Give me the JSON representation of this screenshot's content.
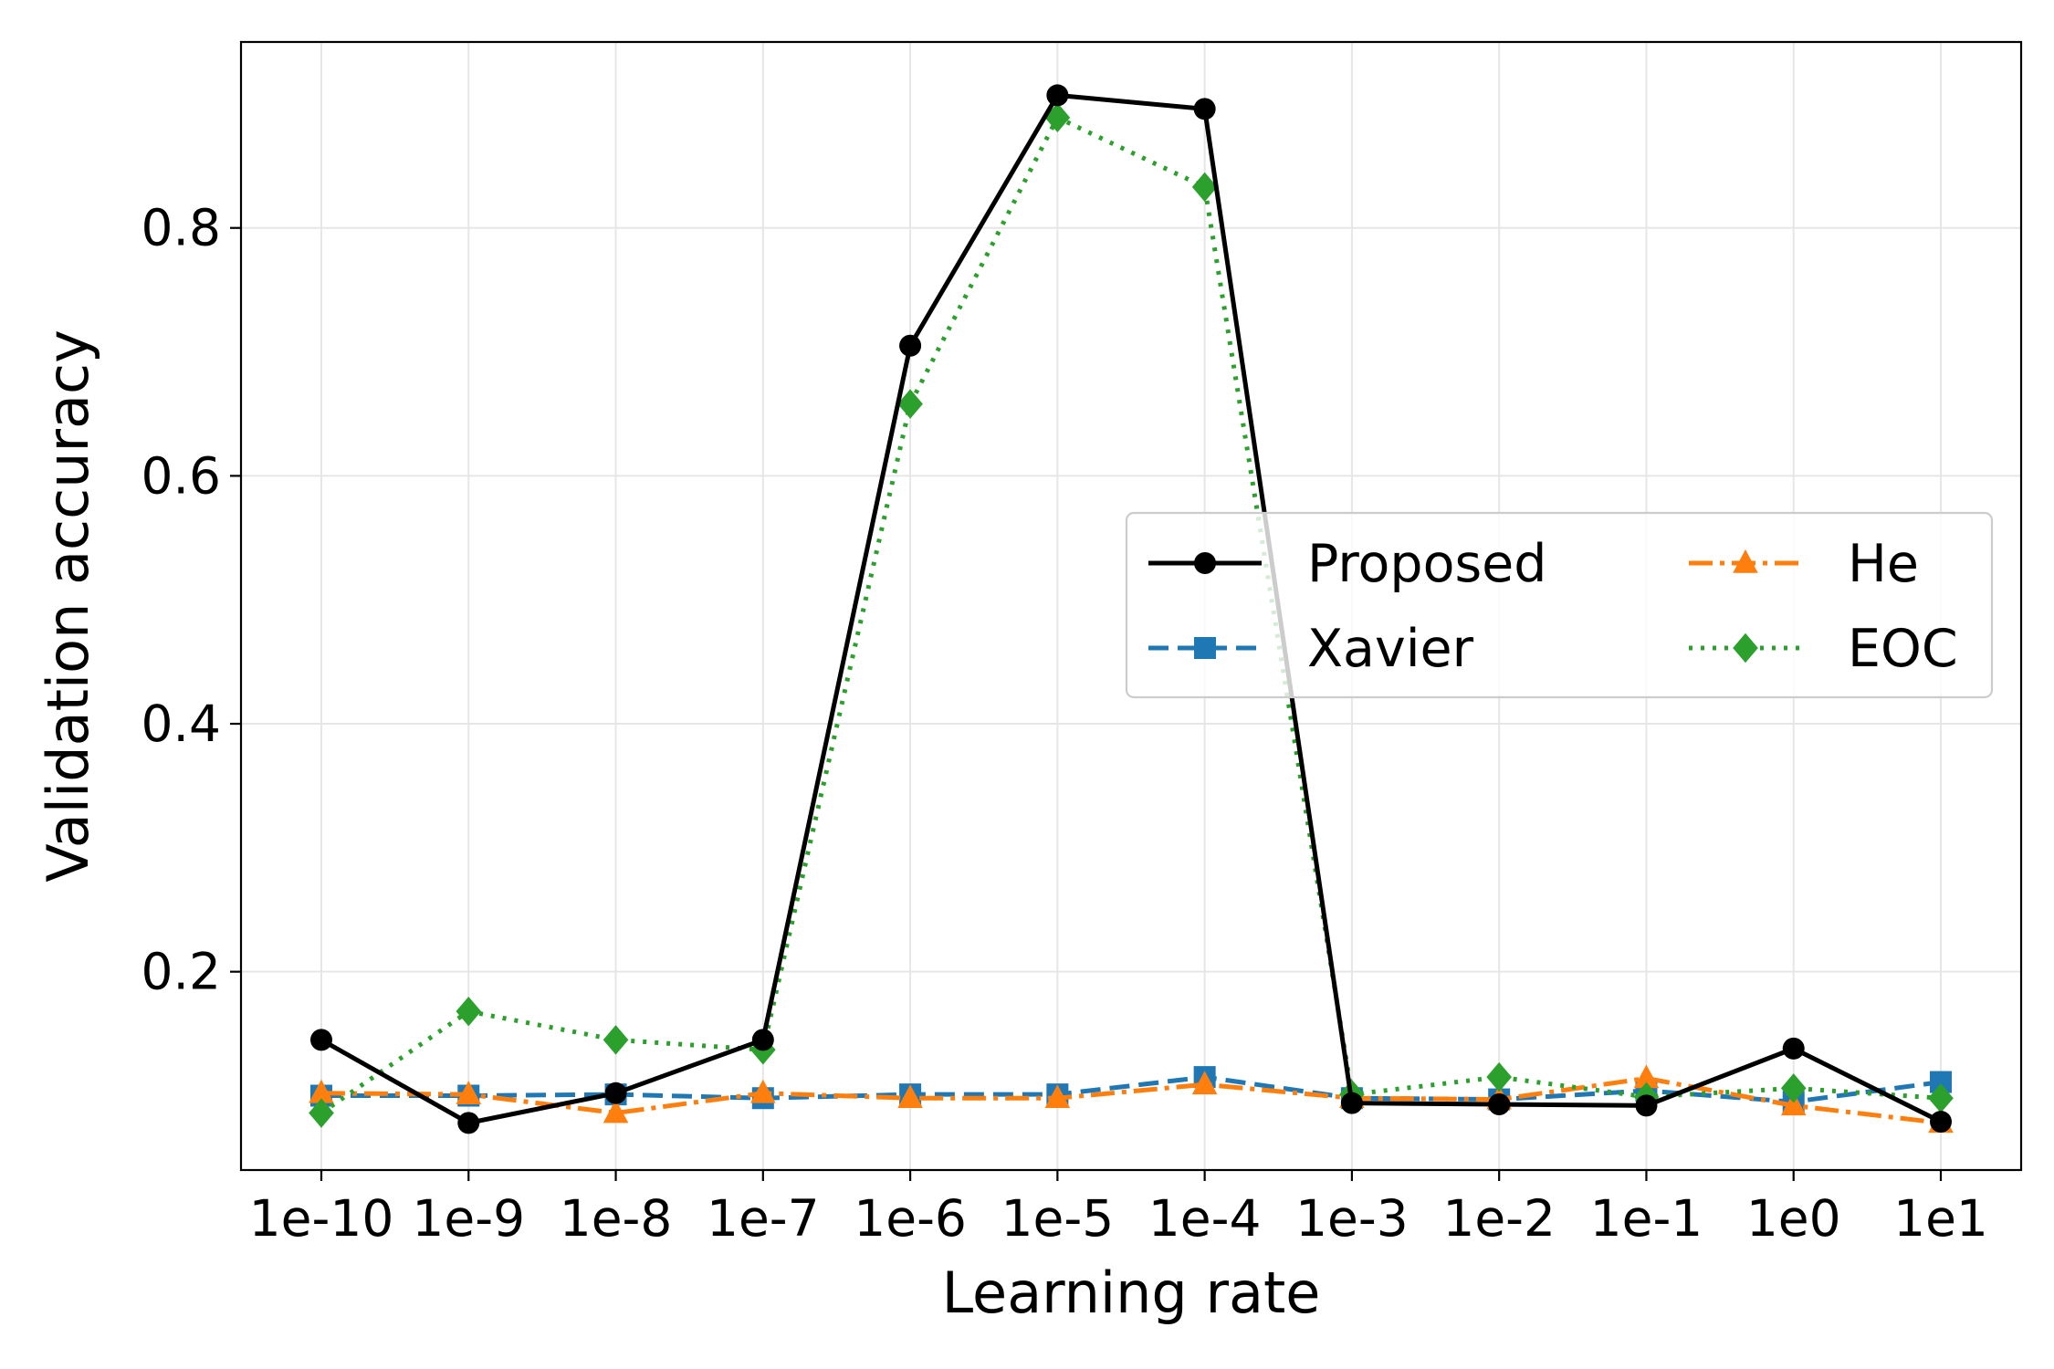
{
  "chart_data": {
    "type": "line",
    "title": "",
    "xlabel": "Learning rate",
    "ylabel": "Validation accuracy",
    "categories": [
      "1e-10",
      "1e-9",
      "1e-8",
      "1e-7",
      "1e-6",
      "1e-5",
      "1e-4",
      "1e-3",
      "1e-2",
      "1e-1",
      "1e0",
      "1e1"
    ],
    "ylim": [
      0.04,
      0.95
    ],
    "yticks": [
      0.2,
      0.4,
      0.6,
      0.8
    ],
    "ytick_labels": [
      "0.2",
      "0.4",
      "0.6",
      "0.8"
    ],
    "grid": true,
    "legend_position": "center-right",
    "series": [
      {
        "name": "Proposed",
        "color": "#000000",
        "linestyle": "solid",
        "marker": "circle",
        "values": [
          0.145,
          0.078,
          0.102,
          0.145,
          0.705,
          0.907,
          0.896,
          0.094,
          0.093,
          0.092,
          0.138,
          0.079
        ]
      },
      {
        "name": "Xavier",
        "color": "#1f77b4",
        "linestyle": "dashed",
        "marker": "square",
        "values": [
          0.1,
          0.1,
          0.101,
          0.098,
          0.101,
          0.101,
          0.115,
          0.098,
          0.097,
          0.104,
          0.095,
          0.111
        ]
      },
      {
        "name": "He",
        "color": "#ff7f0e",
        "linestyle": "dashdot",
        "marker": "triangle",
        "values": [
          0.102,
          0.101,
          0.086,
          0.102,
          0.098,
          0.098,
          0.109,
          0.098,
          0.097,
          0.114,
          0.092,
          0.078
        ]
      },
      {
        "name": "EOC",
        "color": "#2ca02c",
        "linestyle": "dotted",
        "marker": "diamond",
        "values": [
          0.086,
          0.168,
          0.145,
          0.137,
          0.658,
          0.889,
          0.833,
          0.101,
          0.115,
          0.099,
          0.106,
          0.098
        ]
      }
    ]
  }
}
